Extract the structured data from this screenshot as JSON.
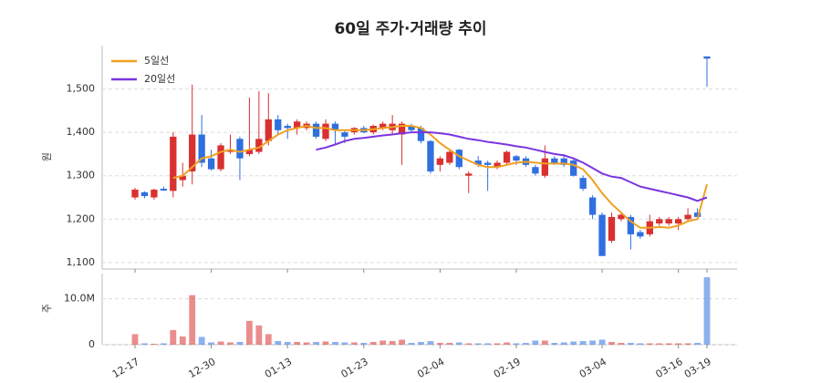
{
  "chart_data": [
    {
      "type": "candlestick",
      "title": "60일 주가·거래량 추이",
      "ylabel": "원",
      "categories": [
        "12-17",
        null,
        null,
        null,
        null,
        null,
        null,
        null,
        "12-30",
        null,
        null,
        null,
        null,
        null,
        null,
        null,
        "01-13",
        null,
        null,
        null,
        null,
        null,
        null,
        null,
        "01-23",
        null,
        null,
        null,
        null,
        null,
        null,
        null,
        "02-04",
        null,
        null,
        null,
        null,
        null,
        null,
        null,
        "02-19",
        null,
        null,
        null,
        null,
        null,
        null,
        null,
        null,
        "03-04",
        null,
        null,
        null,
        null,
        null,
        null,
        null,
        "03-16",
        null,
        null,
        "03-19"
      ],
      "open": [
        1250,
        1262,
        1250,
        1270,
        1265,
        1290,
        1310,
        1395,
        1340,
        1315,
        1355,
        1385,
        1350,
        1355,
        1380,
        1430,
        1415,
        1410,
        1410,
        1420,
        1385,
        1420,
        1400,
        1400,
        1410,
        1400,
        1410,
        1405,
        1395,
        1415,
        1410,
        1380,
        1325,
        1330,
        1360,
        1300,
        1335,
        1330,
        1320,
        1330,
        1345,
        1340,
        1320,
        1300,
        1340,
        1340,
        1335,
        1295,
        1250,
        1210,
        1150,
        1200,
        1205,
        1170,
        1165,
        1190,
        1190,
        1190,
        1200,
        1215,
        1575
      ],
      "high": [
        1272,
        1264,
        1270,
        1275,
        1400,
        1330,
        1510,
        1440,
        1360,
        1375,
        1395,
        1390,
        1480,
        1495,
        1490,
        1440,
        1420,
        1430,
        1425,
        1425,
        1430,
        1425,
        1405,
        1412,
        1415,
        1418,
        1425,
        1440,
        1425,
        1420,
        1415,
        1382,
        1345,
        1358,
        1362,
        1310,
        1345,
        1335,
        1335,
        1358,
        1348,
        1345,
        1325,
        1370,
        1345,
        1350,
        1338,
        1300,
        1255,
        1215,
        1215,
        1215,
        1210,
        1175,
        1210,
        1205,
        1205,
        1205,
        1225,
        1225,
        1575
      ],
      "low": [
        1245,
        1248,
        1245,
        1265,
        1250,
        1275,
        1280,
        1320,
        1312,
        1310,
        1350,
        1290,
        1345,
        1350,
        1370,
        1395,
        1385,
        1395,
        1405,
        1385,
        1380,
        1370,
        1375,
        1395,
        1398,
        1395,
        1405,
        1395,
        1325,
        1400,
        1375,
        1305,
        1310,
        1325,
        1315,
        1260,
        1320,
        1265,
        1315,
        1325,
        1325,
        1320,
        1300,
        1295,
        1325,
        1320,
        1298,
        1265,
        1200,
        1115,
        1145,
        1195,
        1130,
        1155,
        1160,
        1185,
        1185,
        1175,
        1195,
        1200,
        1505
      ],
      "close": [
        1268,
        1253,
        1268,
        1266,
        1390,
        1300,
        1395,
        1330,
        1315,
        1370,
        1360,
        1340,
        1360,
        1385,
        1430,
        1405,
        1410,
        1425,
        1420,
        1390,
        1420,
        1405,
        1390,
        1410,
        1400,
        1415,
        1420,
        1420,
        1420,
        1405,
        1380,
        1310,
        1340,
        1355,
        1320,
        1305,
        1325,
        1325,
        1330,
        1355,
        1335,
        1325,
        1305,
        1340,
        1330,
        1325,
        1300,
        1270,
        1210,
        1115,
        1205,
        1210,
        1165,
        1160,
        1195,
        1200,
        1200,
        1200,
        1210,
        1205,
        1570
      ],
      "series": [
        {
          "name": "5일선",
          "color": "#f0a020",
          "values": [
            null,
            null,
            null,
            null,
            1295,
            1300,
            1320,
            1340,
            1345,
            1355,
            1360,
            1355,
            1360,
            1365,
            1380,
            1395,
            1405,
            1410,
            1415,
            1410,
            1410,
            1405,
            1405,
            1405,
            1405,
            1407,
            1410,
            1412,
            1415,
            1415,
            1410,
            1395,
            1375,
            1360,
            1345,
            1335,
            1325,
            1320,
            1320,
            1325,
            1330,
            1332,
            1330,
            1328,
            1328,
            1328,
            1325,
            1315,
            1290,
            1260,
            1235,
            1215,
            1195,
            1180,
            1180,
            1182,
            1180,
            1185,
            1195,
            1200,
            1280
          ]
        },
        {
          "name": "20일선",
          "color": "#7b35e0",
          "values": [
            null,
            null,
            null,
            null,
            null,
            null,
            null,
            null,
            null,
            null,
            null,
            null,
            null,
            null,
            null,
            null,
            null,
            null,
            null,
            1360,
            1365,
            1372,
            1380,
            1385,
            1387,
            1390,
            1393,
            1395,
            1398,
            1400,
            1400,
            1400,
            1398,
            1395,
            1390,
            1385,
            1382,
            1378,
            1375,
            1372,
            1368,
            1365,
            1360,
            1355,
            1350,
            1347,
            1340,
            1330,
            1318,
            1305,
            1298,
            1295,
            1285,
            1275,
            1270,
            1265,
            1260,
            1255,
            1250,
            1242,
            1250
          ]
        }
      ],
      "up_color": "#d93030",
      "down_color": "#2f6fe0",
      "ylim": [
        1085,
        1600
      ],
      "yticks": [
        {
          "value": 1100,
          "label": "1,100"
        },
        {
          "value": 1200,
          "label": "1,200"
        },
        {
          "value": 1300,
          "label": "1,300"
        },
        {
          "value": 1400,
          "label": "1,400"
        },
        {
          "value": 1500,
          "label": "1,500"
        }
      ],
      "grid": true
    },
    {
      "type": "bar",
      "ylabel": "주",
      "values": [
        2300000,
        300000,
        200000,
        300000,
        3200000,
        1800000,
        10800000,
        1700000,
        500000,
        700000,
        500000,
        600000,
        5200000,
        4200000,
        2300000,
        800000,
        600000,
        600000,
        500000,
        600000,
        700000,
        600000,
        500000,
        500000,
        400000,
        600000,
        900000,
        800000,
        1100000,
        400000,
        600000,
        800000,
        400000,
        400000,
        500000,
        300000,
        300000,
        300000,
        300000,
        500000,
        300000,
        400000,
        900000,
        900000,
        400000,
        500000,
        700000,
        800000,
        900000,
        1100000,
        600000,
        400000,
        400000,
        300000,
        300000,
        300000,
        300000,
        300000,
        300000,
        400000,
        14700000
      ],
      "ylim": [
        0,
        15500000
      ],
      "yticks": [
        0,
        {
          "value": 10000000,
          "label": "10.0M"
        }
      ]
    }
  ]
}
